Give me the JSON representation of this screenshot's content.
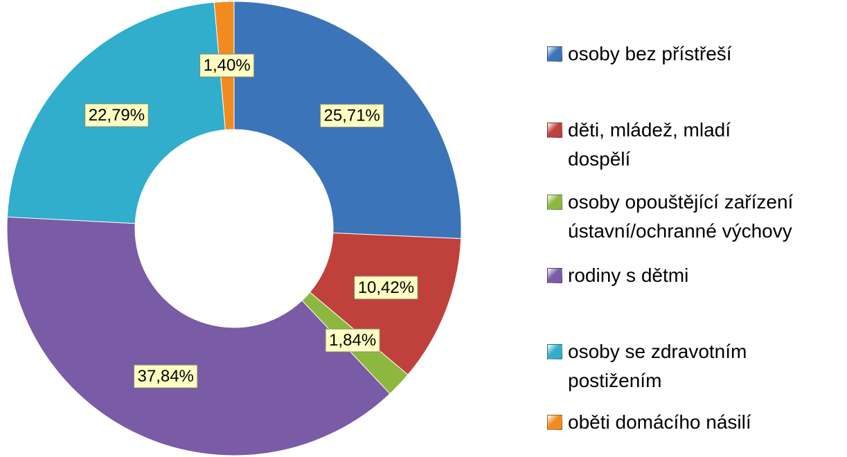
{
  "chart_data": {
    "type": "donut",
    "categories": [
      "osoby bez přístřeší",
      "děti, mládež, mladí dospělí",
      "osoby opouštějící zařízení ústavní/ochranné výchovy",
      "rodiny s dětmi",
      "osoby se zdravotním postižením",
      "oběti domácího násilí"
    ],
    "values": [
      25.71,
      10.42,
      1.84,
      37.84,
      22.79,
      1.4
    ],
    "value_labels": [
      "25,71%",
      "10,42%",
      "1,84%",
      "37,84%",
      "22,79%",
      "1,40%"
    ],
    "colors": [
      "#3b74b9",
      "#c0403b",
      "#8cb83f",
      "#7a5ba5",
      "#30aecb",
      "#f28b1f"
    ],
    "legend": "right"
  }
}
